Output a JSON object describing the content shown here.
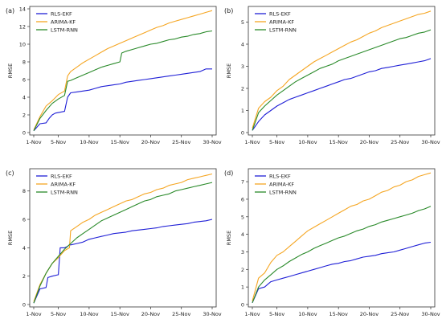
{
  "chart_data": [
    {
      "panel_label": "(a)",
      "type": "line",
      "ylabel": "RMSE",
      "x_tick_labels": [
        "1-Nov",
        "5-Nov",
        "10-Nov",
        "15-Nov",
        "20-Nov",
        "25-Nov",
        "30-Nov"
      ],
      "x_tick_days": [
        1,
        5,
        10,
        15,
        20,
        25,
        30
      ],
      "xlim": [
        1,
        30
      ],
      "ylim": [
        0,
        14
      ],
      "y_ticks": [
        0,
        2,
        4,
        6,
        8,
        10,
        12,
        14
      ],
      "legend_position": "top-left",
      "series": [
        {
          "name": "RLS-EKF",
          "color": "#1f1fd6",
          "x": [
            1,
            2,
            3,
            3.5,
            4,
            4.5,
            6,
            6.5,
            7,
            8,
            9,
            10,
            11,
            12,
            13,
            14,
            15,
            16,
            17,
            18,
            19,
            20,
            21,
            22,
            23,
            24,
            25,
            26,
            27,
            28,
            29,
            30
          ],
          "y": [
            0.2,
            1.0,
            1.1,
            1.6,
            2.0,
            2.2,
            2.4,
            4.0,
            4.5,
            4.6,
            4.7,
            4.8,
            5.0,
            5.2,
            5.3,
            5.4,
            5.5,
            5.7,
            5.8,
            5.9,
            6.0,
            6.1,
            6.2,
            6.3,
            6.4,
            6.5,
            6.6,
            6.7,
            6.8,
            6.9,
            7.2,
            7.2
          ]
        },
        {
          "name": "ARIMA-KF",
          "color": "#f5a623",
          "x": [
            1,
            2,
            3,
            4,
            5,
            6,
            6.5,
            7,
            8,
            9,
            10,
            11,
            12,
            13,
            14,
            15,
            16,
            17,
            18,
            19,
            20,
            21,
            22,
            23,
            24,
            25,
            26,
            27,
            28,
            29,
            30
          ],
          "y": [
            0.3,
            1.8,
            3.0,
            3.6,
            4.3,
            4.7,
            6.4,
            6.9,
            7.4,
            7.9,
            8.3,
            8.7,
            9.1,
            9.5,
            9.8,
            10.1,
            10.4,
            10.7,
            11.0,
            11.3,
            11.6,
            11.9,
            12.1,
            12.4,
            12.6,
            12.8,
            13.0,
            13.2,
            13.4,
            13.6,
            13.8
          ]
        },
        {
          "name": "LSTM-RNN",
          "color": "#2a8a2a",
          "x": [
            1,
            2,
            3,
            4,
            5,
            6,
            6.5,
            7,
            8,
            9,
            10,
            11,
            12,
            13,
            14,
            15,
            15.3,
            16,
            17,
            18,
            19,
            20,
            21,
            22,
            23,
            24,
            25,
            26,
            27,
            28,
            29,
            30
          ],
          "y": [
            0.2,
            1.6,
            2.5,
            3.3,
            3.8,
            4.2,
            5.8,
            5.9,
            6.2,
            6.5,
            6.8,
            7.1,
            7.4,
            7.6,
            7.8,
            8.0,
            9.0,
            9.2,
            9.4,
            9.6,
            9.8,
            10.0,
            10.1,
            10.3,
            10.5,
            10.6,
            10.8,
            10.9,
            11.1,
            11.2,
            11.4,
            11.5
          ]
        }
      ]
    },
    {
      "panel_label": "(b)",
      "type": "line",
      "ylabel": "RMSE",
      "x_tick_labels": [
        "1-Nov",
        "5-Nov",
        "10-Nov",
        "15-Nov",
        "20-Nov",
        "25-Nov",
        "30-Nov"
      ],
      "x_tick_days": [
        1,
        5,
        10,
        15,
        20,
        25,
        30
      ],
      "xlim": [
        1,
        30
      ],
      "ylim": [
        0,
        5.6
      ],
      "y_ticks": [
        0,
        1,
        2,
        3,
        4,
        5
      ],
      "legend_position": "top-left",
      "series": [
        {
          "name": "RLS-EKF",
          "color": "#1f1fd6",
          "x": [
            1,
            2,
            3,
            4,
            5,
            6,
            7,
            8,
            9,
            10,
            11,
            12,
            13,
            14,
            15,
            16,
            17,
            18,
            19,
            20,
            21,
            22,
            23,
            24,
            25,
            26,
            27,
            28,
            29,
            30
          ],
          "y": [
            0.1,
            0.5,
            0.8,
            1.0,
            1.2,
            1.35,
            1.5,
            1.6,
            1.7,
            1.8,
            1.9,
            2.0,
            2.1,
            2.2,
            2.3,
            2.4,
            2.45,
            2.55,
            2.65,
            2.75,
            2.8,
            2.9,
            2.95,
            3.0,
            3.05,
            3.1,
            3.15,
            3.2,
            3.25,
            3.35
          ]
        },
        {
          "name": "ARIMA-KF",
          "color": "#f5a623",
          "x": [
            1,
            2,
            3,
            4,
            5,
            6,
            7,
            8,
            9,
            10,
            11,
            12,
            13,
            14,
            15,
            16,
            17,
            18,
            19,
            20,
            21,
            22,
            23,
            24,
            25,
            26,
            27,
            28,
            29,
            30
          ],
          "y": [
            0.2,
            1.1,
            1.4,
            1.6,
            1.9,
            2.1,
            2.4,
            2.6,
            2.8,
            3.0,
            3.2,
            3.35,
            3.5,
            3.65,
            3.8,
            3.95,
            4.1,
            4.2,
            4.35,
            4.5,
            4.6,
            4.75,
            4.85,
            4.95,
            5.05,
            5.15,
            5.25,
            5.35,
            5.4,
            5.5
          ]
        },
        {
          "name": "LSTM-RNN",
          "color": "#2a8a2a",
          "x": [
            1,
            2,
            3,
            4,
            5,
            6,
            7,
            8,
            9,
            10,
            11,
            12,
            13,
            14,
            15,
            16,
            17,
            18,
            19,
            20,
            21,
            22,
            23,
            24,
            25,
            26,
            27,
            28,
            29,
            30
          ],
          "y": [
            0.1,
            0.9,
            1.2,
            1.45,
            1.7,
            1.9,
            2.1,
            2.3,
            2.45,
            2.6,
            2.75,
            2.9,
            3.0,
            3.1,
            3.25,
            3.35,
            3.45,
            3.55,
            3.65,
            3.75,
            3.85,
            3.95,
            4.05,
            4.15,
            4.25,
            4.3,
            4.4,
            4.5,
            4.55,
            4.65
          ]
        }
      ]
    },
    {
      "panel_label": "(c)",
      "type": "line",
      "ylabel": "RMSE",
      "x_tick_labels": [
        "1-Nov",
        "5-Nov",
        "10-Nov",
        "15-Nov",
        "20-Nov",
        "25-Nov",
        "30-Nov"
      ],
      "x_tick_days": [
        1,
        5,
        10,
        15,
        20,
        25,
        30
      ],
      "xlim": [
        1,
        30
      ],
      "ylim": [
        0,
        9.4
      ],
      "y_ticks": [
        0,
        2,
        4,
        6,
        8
      ],
      "legend_position": "top-left",
      "series": [
        {
          "name": "RLS-EKF",
          "color": "#1f1fd6",
          "x": [
            1,
            2,
            3,
            3.3,
            4,
            5,
            5.3,
            6,
            6.5,
            6.8,
            7,
            8,
            9,
            10,
            11,
            12,
            13,
            14,
            15,
            16,
            17,
            18,
            19,
            20,
            21,
            22,
            23,
            24,
            25,
            26,
            27,
            28,
            29,
            30
          ],
          "y": [
            0.1,
            1.1,
            1.2,
            1.9,
            2.0,
            2.1,
            4.0,
            4.0,
            4.1,
            4.2,
            4.2,
            4.3,
            4.4,
            4.6,
            4.7,
            4.8,
            4.9,
            5.0,
            5.05,
            5.1,
            5.2,
            5.25,
            5.3,
            5.35,
            5.4,
            5.5,
            5.55,
            5.6,
            5.65,
            5.7,
            5.8,
            5.85,
            5.9,
            6.0
          ]
        },
        {
          "name": "ARIMA-KF",
          "color": "#f5a623",
          "x": [
            1,
            2,
            3,
            4,
            5,
            6,
            6.8,
            7,
            8,
            9,
            10,
            11,
            12,
            13,
            14,
            15,
            16,
            17,
            18,
            19,
            20,
            21,
            22,
            23,
            24,
            25,
            26,
            27,
            28,
            29,
            30
          ],
          "y": [
            0.2,
            1.4,
            2.2,
            2.9,
            3.3,
            3.8,
            4.0,
            5.2,
            5.5,
            5.8,
            6.0,
            6.3,
            6.5,
            6.7,
            6.9,
            7.1,
            7.3,
            7.4,
            7.6,
            7.8,
            7.9,
            8.1,
            8.2,
            8.4,
            8.5,
            8.6,
            8.8,
            8.9,
            9.0,
            9.1,
            9.2
          ]
        },
        {
          "name": "LSTM-RNN",
          "color": "#2a8a2a",
          "x": [
            1,
            2,
            3,
            4,
            5,
            6,
            7,
            8,
            9,
            10,
            11,
            12,
            13,
            14,
            15,
            16,
            17,
            18,
            19,
            20,
            21,
            22,
            23,
            24,
            25,
            26,
            27,
            28,
            29,
            30
          ],
          "y": [
            0.1,
            1.3,
            2.2,
            2.9,
            3.4,
            3.9,
            4.3,
            4.7,
            5.0,
            5.3,
            5.6,
            5.9,
            6.1,
            6.3,
            6.5,
            6.7,
            6.9,
            7.1,
            7.3,
            7.4,
            7.6,
            7.7,
            7.8,
            8.0,
            8.1,
            8.2,
            8.3,
            8.4,
            8.5,
            8.6
          ]
        }
      ]
    },
    {
      "panel_label": "(d)",
      "type": "line",
      "ylabel": "RMSE",
      "x_tick_labels": [
        "1-Nov",
        "5-Nov",
        "10-Nov",
        "15-Nov",
        "20-Nov",
        "25-Nov",
        "30-Nov"
      ],
      "x_tick_days": [
        1,
        5,
        10,
        15,
        20,
        25,
        30
      ],
      "xlim": [
        1,
        30
      ],
      "ylim": [
        0,
        7.6
      ],
      "y_ticks": [
        0,
        1,
        2,
        3,
        4,
        5,
        6,
        7
      ],
      "legend_position": "top-left",
      "series": [
        {
          "name": "RLS-EKF",
          "color": "#1f1fd6",
          "x": [
            1,
            2,
            3,
            4,
            5,
            6,
            7,
            8,
            9,
            10,
            11,
            12,
            13,
            14,
            15,
            16,
            17,
            18,
            19,
            20,
            21,
            22,
            23,
            24,
            25,
            26,
            27,
            28,
            29,
            30
          ],
          "y": [
            0.1,
            0.9,
            1.0,
            1.3,
            1.4,
            1.5,
            1.6,
            1.7,
            1.8,
            1.9,
            2.0,
            2.1,
            2.2,
            2.3,
            2.35,
            2.45,
            2.5,
            2.6,
            2.7,
            2.75,
            2.8,
            2.9,
            2.95,
            3.0,
            3.1,
            3.2,
            3.3,
            3.4,
            3.5,
            3.55
          ]
        },
        {
          "name": "ARIMA-KF",
          "color": "#f5a623",
          "x": [
            1,
            2,
            3,
            4,
            5,
            6,
            7,
            8,
            9,
            10,
            11,
            12,
            13,
            14,
            15,
            16,
            17,
            18,
            19,
            20,
            21,
            22,
            23,
            24,
            25,
            26,
            27,
            28,
            29,
            30
          ],
          "y": [
            0.2,
            1.5,
            1.8,
            2.4,
            2.8,
            3.0,
            3.3,
            3.6,
            3.9,
            4.2,
            4.4,
            4.6,
            4.8,
            5.0,
            5.2,
            5.4,
            5.6,
            5.7,
            5.9,
            6.0,
            6.2,
            6.4,
            6.5,
            6.7,
            6.8,
            7.0,
            7.1,
            7.3,
            7.4,
            7.5
          ]
        },
        {
          "name": "LSTM-RNN",
          "color": "#2a8a2a",
          "x": [
            1,
            2,
            3,
            4,
            5,
            6,
            7,
            8,
            9,
            10,
            11,
            12,
            13,
            14,
            15,
            16,
            17,
            18,
            19,
            20,
            21,
            22,
            23,
            24,
            25,
            26,
            27,
            28,
            29,
            30
          ],
          "y": [
            0.1,
            1.0,
            1.4,
            1.7,
            2.0,
            2.2,
            2.45,
            2.65,
            2.85,
            3.0,
            3.2,
            3.35,
            3.5,
            3.65,
            3.8,
            3.9,
            4.05,
            4.2,
            4.3,
            4.45,
            4.55,
            4.7,
            4.8,
            4.9,
            5.0,
            5.1,
            5.2,
            5.35,
            5.45,
            5.6
          ]
        }
      ]
    }
  ]
}
